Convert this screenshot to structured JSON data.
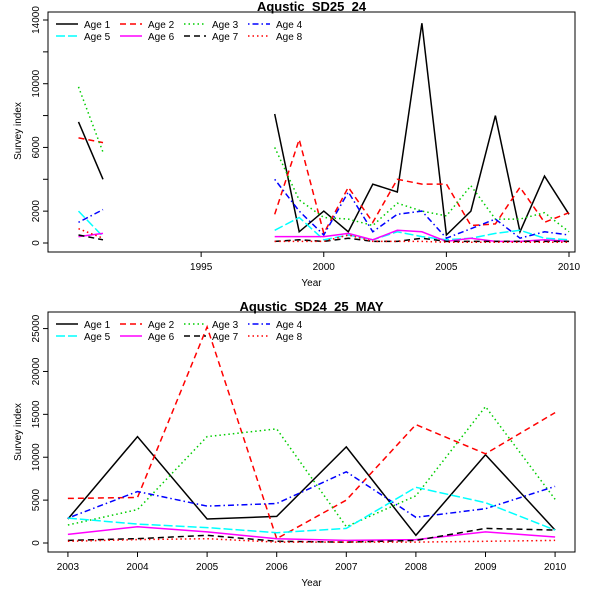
{
  "chart_data": [
    {
      "type": "line",
      "title": "Aqustic_SD25_24",
      "xlabel": "Year",
      "ylabel": "Survey index",
      "xlim": [
        1989,
        2010
      ],
      "ylim": [
        0,
        14000
      ],
      "x_ticks": [
        1995,
        2000,
        2005,
        2010
      ],
      "y_ticks": [
        0,
        2000,
        6000,
        10000,
        14000
      ],
      "y_minor_ticks": [
        4000,
        8000,
        12000
      ],
      "legend_position": "top-left",
      "x": [
        1990,
        1991,
        1998,
        1999,
        2000,
        2001,
        2002,
        2003,
        2004,
        2005,
        2006,
        2007,
        2008,
        2009,
        2010
      ],
      "series": [
        {
          "name": "Age 1",
          "color": "#000000",
          "dash": "solid",
          "values": [
            7600,
            4000,
            null,
            null,
            null,
            null,
            null,
            null,
            null,
            null,
            null,
            null,
            null,
            null,
            null
          ],
          "values_full": [
            7600,
            4000,
            8100,
            700,
            2000,
            700,
            3700,
            3200,
            13800,
            500,
            2000,
            8000,
            700,
            4200,
            1800
          ]
        },
        {
          "name": "Age 2",
          "color": "#ff0000",
          "dash": "dashed",
          "values_full": [
            6600,
            6300,
            1800,
            6500,
            600,
            3500,
            1300,
            4000,
            3700,
            3700,
            1100,
            1200,
            3500,
            1300,
            1900
          ]
        },
        {
          "name": "Age 3",
          "color": "#00cd00",
          "dash": "dotted",
          "values_full": [
            9800,
            5700,
            6000,
            2700,
            1600,
            1500,
            1100,
            2500,
            2000,
            1700,
            3600,
            1500,
            1500,
            1900,
            700
          ]
        },
        {
          "name": "Age 4",
          "color": "#0000ff",
          "dash": "dotdash",
          "values_full": [
            1300,
            2100,
            4000,
            2000,
            500,
            3200,
            700,
            1800,
            2000,
            300,
            900,
            1500,
            300,
            700,
            500
          ]
        },
        {
          "name": "Age 5",
          "color": "#00ffff",
          "dash": "longdash",
          "values_full": [
            2000,
            400,
            800,
            1600,
            200,
            500,
            200,
            700,
            400,
            200,
            300,
            600,
            800,
            300,
            200
          ]
        },
        {
          "name": "Age 6",
          "color": "#ff00ff",
          "dash": "solid",
          "values_full": [
            400,
            600,
            400,
            400,
            400,
            600,
            200,
            800,
            700,
            100,
            300,
            100,
            100,
            200,
            100
          ]
        },
        {
          "name": "Age 7",
          "color": "#000000",
          "dash": "dashed",
          "values_full": [
            500,
            200,
            100,
            200,
            100,
            300,
            100,
            100,
            300,
            100,
            100,
            100,
            100,
            100,
            100
          ]
        },
        {
          "name": "Age 8",
          "color": "#ff0000",
          "dash": "dotted",
          "values_full": [
            900,
            300,
            100,
            100,
            100,
            500,
            100,
            100,
            100,
            50,
            50,
            50,
            50,
            50,
            50
          ]
        }
      ]
    },
    {
      "type": "line",
      "title": "Aqustic_SD24_25_MAY",
      "xlabel": "Year",
      "ylabel": "Survey index",
      "xlim": [
        2002.8,
        2010.2
      ],
      "ylim": [
        0,
        26000
      ],
      "x_ticks": [
        2003,
        2004,
        2005,
        2006,
        2007,
        2008,
        2009,
        2010
      ],
      "y_ticks": [
        0,
        5000,
        10000,
        15000,
        20000,
        25000
      ],
      "legend_position": "top-left",
      "x": [
        2003,
        2004,
        2005,
        2006,
        2007,
        2008,
        2009,
        2010
      ],
      "series": [
        {
          "name": "Age 1",
          "color": "#000000",
          "dash": "solid",
          "values_full": [
            2800,
            12400,
            2800,
            3100,
            11200,
            900,
            10300,
            1500
          ]
        },
        {
          "name": "Age 2",
          "color": "#ff0000",
          "dash": "dashed",
          "values_full": [
            5200,
            5300,
            25200,
            500,
            5000,
            13800,
            10400,
            15200
          ]
        },
        {
          "name": "Age 3",
          "color": "#00cd00",
          "dash": "dotted",
          "values_full": [
            2100,
            3900,
            12400,
            13300,
            1900,
            5500,
            15900,
            5100
          ]
        },
        {
          "name": "Age 4",
          "color": "#0000ff",
          "dash": "dotdash",
          "values_full": [
            2900,
            6000,
            4300,
            4600,
            8300,
            3000,
            4000,
            6600
          ]
        },
        {
          "name": "Age 5",
          "color": "#00ffff",
          "dash": "longdash",
          "values_full": [
            2900,
            2200,
            1800,
            1200,
            1700,
            6500,
            4700,
            1500
          ]
        },
        {
          "name": "Age 6",
          "color": "#ff00ff",
          "dash": "solid",
          "values_full": [
            1000,
            1900,
            1300,
            500,
            300,
            400,
            1300,
            700
          ]
        },
        {
          "name": "Age 7",
          "color": "#000000",
          "dash": "dashed",
          "values_full": [
            300,
            500,
            900,
            200,
            100,
            300,
            1700,
            1500
          ]
        },
        {
          "name": "Age 8",
          "color": "#ff0000",
          "dash": "dotted",
          "values_full": [
            200,
            400,
            500,
            100,
            100,
            100,
            200,
            300
          ]
        }
      ]
    }
  ]
}
